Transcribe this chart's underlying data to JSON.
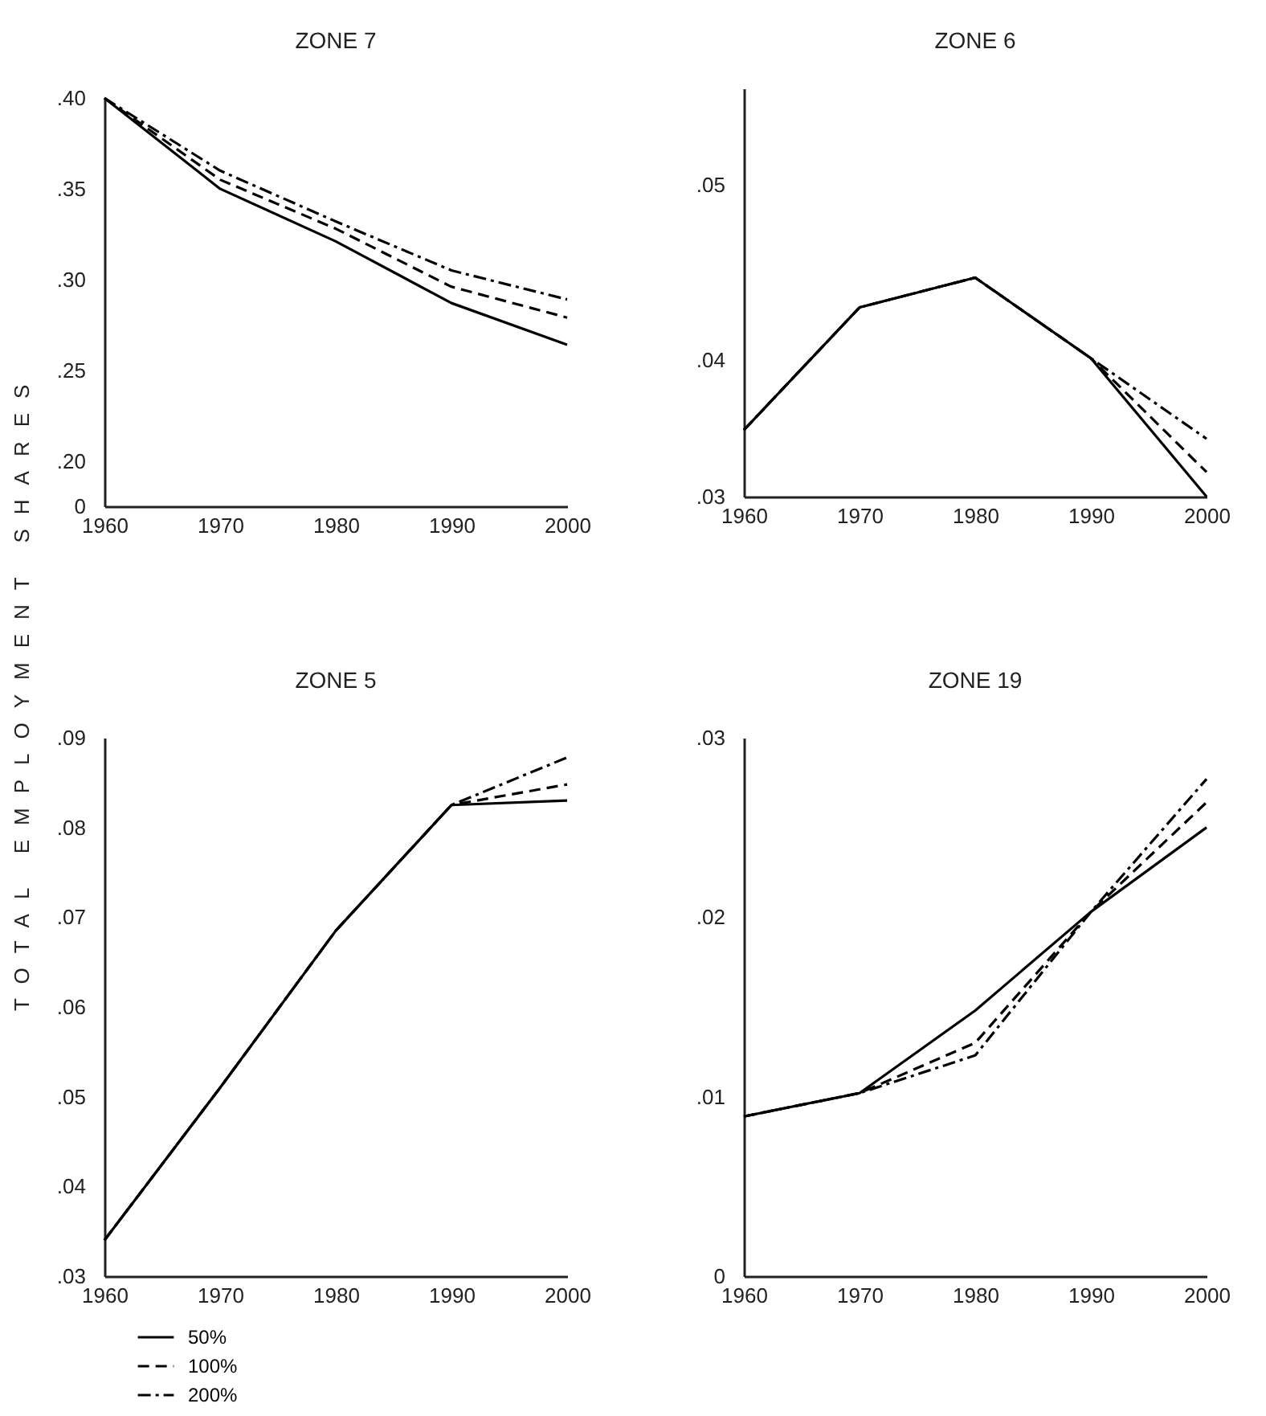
{
  "chart_data": [
    {
      "type": "line",
      "title": "ZONE 7",
      "ylabel": "TOTAL EMPLOYMENT SHARES",
      "x": [
        1960,
        1970,
        1980,
        1990,
        2000
      ],
      "xlim": [
        1960,
        2000
      ],
      "xticks": [
        1960,
        1970,
        1980,
        1990,
        2000
      ],
      "ylim": [
        0.175,
        0.4
      ],
      "yticks": [
        {
          "value": 0.175,
          "label": "0"
        },
        {
          "value": 0.2,
          "label": ".20"
        },
        {
          "value": 0.25,
          "label": ".25"
        },
        {
          "value": 0.3,
          "label": ".30"
        },
        {
          "value": 0.35,
          "label": ".35"
        },
        {
          "value": 0.4,
          "label": ".40"
        }
      ],
      "series": [
        {
          "color": "#000000",
          "line_style": "solid",
          "values": [
            0.4,
            0.35,
            0.321,
            0.287,
            0.264
          ]
        },
        {
          "color": "#000000",
          "line_style": "dashed",
          "values": [
            0.4,
            0.355,
            0.328,
            0.296,
            0.279
          ]
        },
        {
          "color": "#000000",
          "line_style": "dashdot",
          "values": [
            0.4,
            0.36,
            0.332,
            0.305,
            0.289
          ]
        }
      ]
    },
    {
      "type": "line",
      "title": "ZONE 6",
      "x": [
        1960,
        1970,
        1980,
        1990,
        2000
      ],
      "xlim": [
        1960,
        2000
      ],
      "xticks": [
        1960,
        1970,
        1980,
        1990,
        2000
      ],
      "ylim": [
        0.0322,
        0.0555
      ],
      "yticks": [
        {
          "value": 0.0322,
          "label": ".03"
        },
        {
          "value": 0.04,
          "label": ".04"
        },
        {
          "value": 0.05,
          "label": ".05"
        }
      ],
      "series": [
        {
          "color": "#000000",
          "line_style": "solid",
          "values": [
            0.036,
            0.043,
            0.0447,
            0.0401,
            0.0322
          ]
        },
        {
          "color": "#000000",
          "line_style": "dashed",
          "values": [
            0.036,
            0.043,
            0.0447,
            0.0401,
            0.0336
          ]
        },
        {
          "color": "#000000",
          "line_style": "dashdot",
          "values": [
            0.036,
            0.043,
            0.0447,
            0.0401,
            0.0355
          ]
        }
      ]
    },
    {
      "type": "line",
      "title": "ZONE 5",
      "x": [
        1960,
        1970,
        1980,
        1990,
        2000
      ],
      "xlim": [
        1960,
        2000
      ],
      "xticks": [
        1960,
        1970,
        1980,
        1990,
        2000
      ],
      "ylim": [
        0.03,
        0.09
      ],
      "yticks": [
        {
          "value": 0.03,
          "label": ".03"
        },
        {
          "value": 0.04,
          "label": ".04"
        },
        {
          "value": 0.05,
          "label": ".05"
        },
        {
          "value": 0.06,
          "label": ".06"
        },
        {
          "value": 0.07,
          "label": ".07"
        },
        {
          "value": 0.08,
          "label": ".08"
        },
        {
          "value": 0.09,
          "label": ".09"
        }
      ],
      "legend": "bottom left",
      "series": [
        {
          "name": "50%",
          "color": "#000000",
          "line_style": "solid",
          "values": [
            0.034,
            0.051,
            0.0685,
            0.0825,
            0.083
          ]
        },
        {
          "name": "100%",
          "color": "#000000",
          "line_style": "dashed",
          "values": [
            0.034,
            0.051,
            0.0685,
            0.0825,
            0.0848
          ]
        },
        {
          "name": "200%",
          "color": "#000000",
          "line_style": "dashdot",
          "values": [
            0.034,
            0.051,
            0.0685,
            0.0825,
            0.0878
          ]
        }
      ]
    },
    {
      "type": "line",
      "title": "ZONE 19",
      "x": [
        1960,
        1970,
        1980,
        1990,
        2000
      ],
      "xlim": [
        1960,
        2000
      ],
      "xticks": [
        1960,
        1970,
        1980,
        1990,
        2000
      ],
      "ylim": [
        0,
        0.03
      ],
      "yticks": [
        {
          "value": 0,
          "label": "0"
        },
        {
          "value": 0.01,
          "label": ".01"
        },
        {
          "value": 0.02,
          "label": ".02"
        },
        {
          "value": 0.03,
          "label": ".03"
        }
      ],
      "series": [
        {
          "color": "#000000",
          "line_style": "solid",
          "values": [
            0.0089,
            0.0102,
            0.0148,
            0.0203,
            0.025
          ]
        },
        {
          "color": "#000000",
          "line_style": "dashed",
          "values": [
            0.0089,
            0.0102,
            0.013,
            0.0203,
            0.0264
          ]
        },
        {
          "color": "#000000",
          "line_style": "dashdot",
          "values": [
            0.0089,
            0.0102,
            0.0123,
            0.0203,
            0.0277
          ]
        }
      ]
    }
  ]
}
